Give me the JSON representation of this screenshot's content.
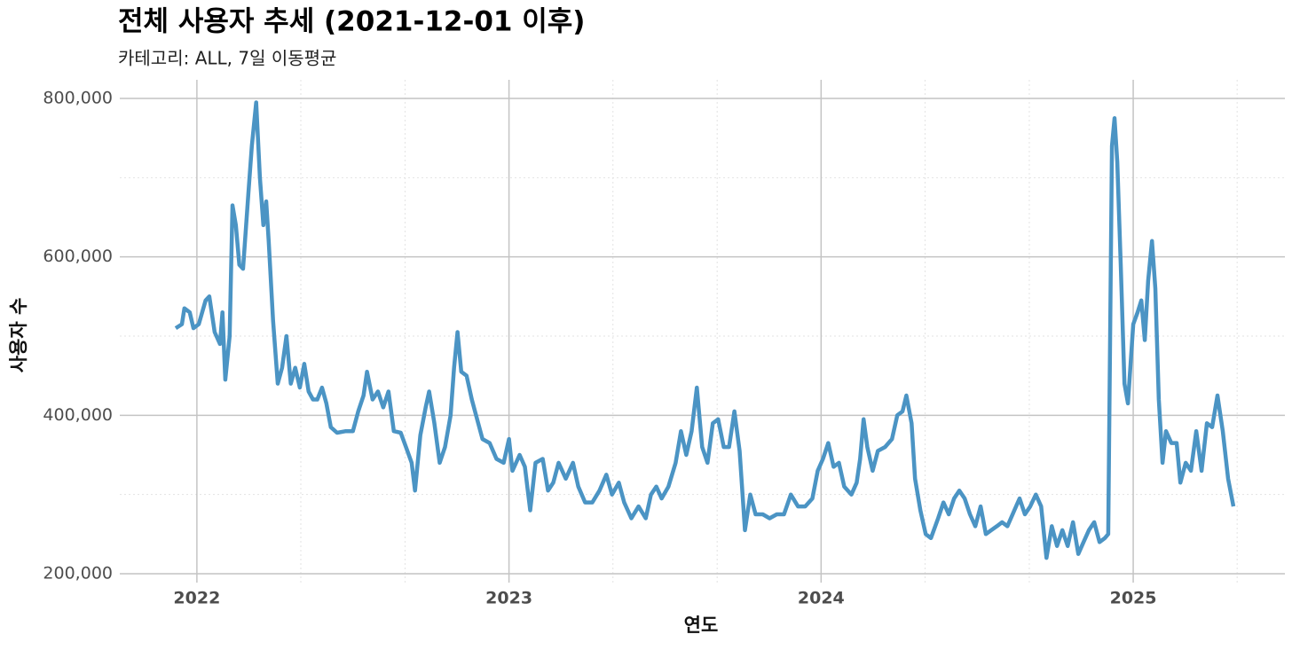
{
  "chart_data": {
    "type": "line",
    "title": "전체 사용자 추세 (2021-12-01 이후)",
    "subtitle": "카테고리: ALL, 7일 이동평균",
    "x_label": "연도",
    "y_label": "사용자 수",
    "x": [
      2021.932,
      2021.952,
      2021.96,
      2021.977,
      2021.989,
      2022.006,
      2022.028,
      2022.04,
      2022.057,
      2022.074,
      2022.082,
      2022.091,
      2022.105,
      2022.114,
      2022.125,
      2022.136,
      2022.148,
      2022.165,
      2022.176,
      2022.19,
      2022.202,
      2022.213,
      2022.222,
      2022.23,
      2022.244,
      2022.259,
      2022.273,
      2022.287,
      2022.301,
      2022.315,
      2022.33,
      2022.344,
      2022.358,
      2022.372,
      2022.386,
      2022.401,
      2022.415,
      2022.429,
      2022.449,
      2022.477,
      2022.5,
      2022.517,
      2022.534,
      2022.545,
      2022.563,
      2022.58,
      2022.597,
      2022.614,
      2022.631,
      2022.653,
      2022.67,
      2022.688,
      2022.699,
      2022.716,
      2022.733,
      2022.744,
      2022.761,
      2022.778,
      2022.795,
      2022.813,
      2022.824,
      2022.835,
      2022.847,
      2022.864,
      2022.881,
      2022.898,
      2022.915,
      2022.938,
      2022.96,
      2022.983,
      2023.0,
      2023.011,
      2023.034,
      2023.051,
      2023.068,
      2023.085,
      2023.108,
      2023.125,
      2023.142,
      2023.159,
      2023.182,
      2023.205,
      2023.222,
      2023.244,
      2023.267,
      2023.29,
      2023.312,
      2023.33,
      2023.352,
      2023.369,
      2023.392,
      2023.415,
      2023.438,
      2023.455,
      2023.472,
      2023.489,
      2023.511,
      2023.534,
      2023.551,
      2023.568,
      2023.585,
      2023.602,
      2023.619,
      2023.636,
      2023.653,
      2023.67,
      2023.688,
      2023.705,
      2023.722,
      2023.739,
      2023.756,
      2023.773,
      2023.79,
      2023.813,
      2023.835,
      2023.858,
      2023.881,
      2023.903,
      2023.926,
      2023.949,
      2023.972,
      2023.989,
      2024.006,
      2024.023,
      2024.04,
      2024.057,
      2024.074,
      2024.097,
      2024.114,
      2024.125,
      2024.136,
      2024.148,
      2024.165,
      2024.182,
      2024.205,
      2024.227,
      2024.244,
      2024.261,
      2024.273,
      2024.29,
      2024.301,
      2024.318,
      2024.335,
      2024.352,
      2024.375,
      2024.392,
      2024.409,
      2024.426,
      2024.443,
      2024.46,
      2024.477,
      2024.494,
      2024.511,
      2024.528,
      2024.545,
      2024.563,
      2024.58,
      2024.597,
      2024.619,
      2024.636,
      2024.653,
      2024.67,
      2024.688,
      2024.705,
      2024.722,
      2024.739,
      2024.756,
      2024.773,
      2024.79,
      2024.807,
      2024.824,
      2024.841,
      2024.858,
      2024.875,
      2024.892,
      2024.909,
      2024.92,
      2024.932,
      2024.94,
      2024.949,
      2024.96,
      2024.972,
      2024.983,
      2025.0,
      2025.014,
      2025.026,
      2025.037,
      2025.048,
      2025.06,
      2025.071,
      2025.082,
      2025.094,
      2025.105,
      2025.122,
      2025.139,
      2025.151,
      2025.168,
      2025.185,
      2025.202,
      2025.219,
      2025.236,
      2025.253,
      2025.27,
      2025.287,
      2025.304,
      2025.321
    ],
    "series": [
      {
        "color": "#4b94c4",
        "values": [
          510000,
          515000,
          535000,
          530000,
          510000,
          515000,
          545000,
          550000,
          505000,
          490000,
          530000,
          445000,
          500000,
          665000,
          640000,
          590000,
          585000,
          680000,
          740000,
          795000,
          700000,
          640000,
          670000,
          620000,
          520000,
          440000,
          460000,
          500000,
          440000,
          460000,
          435000,
          465000,
          430000,
          420000,
          420000,
          435000,
          415000,
          385000,
          378000,
          380000,
          380000,
          405000,
          425000,
          455000,
          420000,
          430000,
          410000,
          430000,
          380000,
          378000,
          360000,
          340000,
          305000,
          375000,
          410000,
          430000,
          390000,
          340000,
          360000,
          400000,
          460000,
          505000,
          455000,
          450000,
          420000,
          395000,
          370000,
          365000,
          345000,
          340000,
          370000,
          330000,
          350000,
          335000,
          280000,
          340000,
          345000,
          305000,
          315000,
          340000,
          320000,
          340000,
          310000,
          290000,
          290000,
          305000,
          325000,
          300000,
          315000,
          290000,
          270000,
          285000,
          270000,
          300000,
          310000,
          295000,
          310000,
          340000,
          380000,
          350000,
          380000,
          435000,
          360000,
          340000,
          390000,
          395000,
          360000,
          360000,
          405000,
          355000,
          255000,
          300000,
          275000,
          275000,
          270000,
          275000,
          275000,
          300000,
          285000,
          285000,
          295000,
          330000,
          345000,
          365000,
          335000,
          340000,
          310000,
          300000,
          315000,
          345000,
          395000,
          360000,
          330000,
          355000,
          360000,
          370000,
          400000,
          405000,
          425000,
          390000,
          320000,
          280000,
          250000,
          245000,
          270000,
          290000,
          275000,
          295000,
          305000,
          295000,
          275000,
          260000,
          285000,
          250000,
          255000,
          260000,
          265000,
          260000,
          280000,
          295000,
          275000,
          285000,
          300000,
          285000,
          220000,
          260000,
          235000,
          255000,
          235000,
          265000,
          225000,
          240000,
          255000,
          265000,
          240000,
          245000,
          250000,
          740000,
          775000,
          720000,
          590000,
          440000,
          415000,
          515000,
          530000,
          545000,
          495000,
          570000,
          620000,
          560000,
          420000,
          340000,
          380000,
          365000,
          365000,
          315000,
          340000,
          330000,
          380000,
          330000,
          390000,
          385000,
          425000,
          380000,
          320000,
          285000
        ]
      }
    ],
    "xlim": [
      2021.753,
      2025.486
    ],
    "ylim": [
      188800,
      823500
    ],
    "xticks": [
      2022,
      2023,
      2024,
      2025
    ],
    "yticks": [
      {
        "value": 200000,
        "label": "200,000"
      },
      {
        "value": 400000,
        "label": "400,000"
      },
      {
        "value": 600000,
        "label": "600,000"
      },
      {
        "value": 800000,
        "label": "800,000"
      }
    ],
    "minor_xticks": [
      2022.333,
      2022.667,
      2023.333,
      2023.667,
      2024.333,
      2024.667,
      2025.333
    ],
    "minor_yticks": [
      300000,
      500000,
      700000
    ],
    "grid": true
  }
}
